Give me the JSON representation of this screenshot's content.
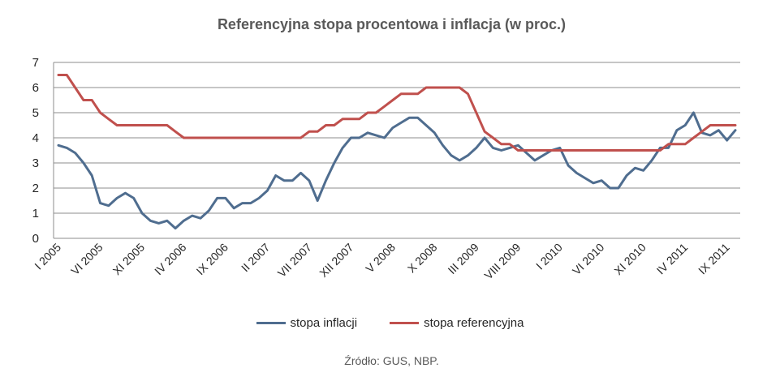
{
  "chart_data": {
    "type": "line",
    "title": "Referencyjna stopa procentowa i inflacja (w proc.)",
    "source": "Źródło: GUS, NBP.",
    "ylim": [
      0,
      7
    ],
    "yticks": [
      "0",
      "1",
      "2",
      "3",
      "4",
      "5",
      "6",
      "7"
    ],
    "grid": true,
    "legend_position": "bottom",
    "x_tick_labels": [
      "I 2005",
      "VI 2005",
      "XI 2005",
      "IV 2006",
      "IX 2006",
      "II 2007",
      "VII 2007",
      "XII 2007",
      "V 2008",
      "X 2008",
      "III 2009",
      "VIII 2009",
      "I 2010",
      "VI 2010",
      "XI 2010",
      "IV 2011",
      "IX 2011"
    ],
    "x_tick_months": [
      1,
      6,
      11,
      16,
      21,
      26,
      31,
      36,
      41,
      46,
      51,
      56,
      61,
      66,
      71,
      76,
      81
    ],
    "x_count": 82,
    "series": [
      {
        "name": "stopa inflacji",
        "color": "#4F6D8F",
        "values": [
          3.7,
          3.6,
          3.4,
          3.0,
          2.5,
          1.4,
          1.3,
          1.6,
          1.8,
          1.6,
          1.0,
          0.7,
          0.6,
          0.7,
          0.4,
          0.7,
          0.9,
          0.8,
          1.1,
          1.6,
          1.6,
          1.2,
          1.4,
          1.4,
          1.6,
          1.9,
          2.5,
          2.3,
          2.3,
          2.6,
          2.3,
          1.5,
          2.3,
          3.0,
          3.6,
          4.0,
          4.0,
          4.2,
          4.1,
          4.0,
          4.4,
          4.6,
          4.8,
          4.8,
          4.5,
          4.2,
          3.7,
          3.3,
          3.1,
          3.3,
          3.6,
          4.0,
          3.6,
          3.5,
          3.6,
          3.7,
          3.4,
          3.1,
          3.3,
          3.5,
          3.6,
          2.9,
          2.6,
          2.4,
          2.2,
          2.3,
          2.0,
          2.0,
          2.5,
          2.8,
          2.7,
          3.1,
          3.6,
          3.6,
          4.3,
          4.5,
          5.0,
          4.2,
          4.1,
          4.3,
          3.9,
          4.3
        ]
      },
      {
        "name": "stopa referencyjna",
        "color": "#C0504D",
        "values": [
          6.5,
          6.5,
          6.0,
          5.5,
          5.5,
          5.0,
          4.75,
          4.5,
          4.5,
          4.5,
          4.5,
          4.5,
          4.5,
          4.5,
          4.25,
          4.0,
          4.0,
          4.0,
          4.0,
          4.0,
          4.0,
          4.0,
          4.0,
          4.0,
          4.0,
          4.0,
          4.0,
          4.0,
          4.0,
          4.0,
          4.25,
          4.25,
          4.5,
          4.5,
          4.75,
          4.75,
          4.75,
          5.0,
          5.0,
          5.25,
          5.5,
          5.75,
          5.75,
          5.75,
          6.0,
          6.0,
          6.0,
          6.0,
          6.0,
          5.75,
          5.0,
          4.25,
          4.0,
          3.75,
          3.75,
          3.5,
          3.5,
          3.5,
          3.5,
          3.5,
          3.5,
          3.5,
          3.5,
          3.5,
          3.5,
          3.5,
          3.5,
          3.5,
          3.5,
          3.5,
          3.5,
          3.5,
          3.5,
          3.75,
          3.75,
          3.75,
          4.0,
          4.25,
          4.5,
          4.5,
          4.5,
          4.5
        ]
      }
    ]
  }
}
